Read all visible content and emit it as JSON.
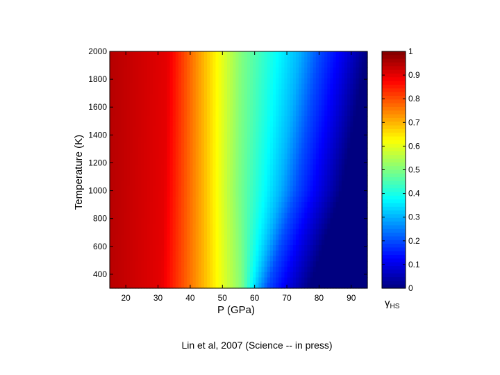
{
  "chart_data": {
    "type": "heatmap",
    "title": "",
    "xlabel": "P (GPa)",
    "ylabel": "Temperature (K)",
    "xlim": [
      15,
      95
    ],
    "ylim": [
      300,
      2000
    ],
    "x_ticks": [
      20,
      30,
      40,
      50,
      60,
      70,
      80,
      90
    ],
    "y_ticks": [
      400,
      600,
      800,
      1000,
      1200,
      1400,
      1600,
      1800,
      2000
    ],
    "colorbar": {
      "label_main": "γ",
      "label_sub": "HS",
      "range": [
        0,
        1
      ],
      "ticks": [
        "0",
        "0.1",
        "0.2",
        "0.3",
        "0.4",
        "0.5",
        "0.6",
        "0.7",
        "0.8",
        "0.9",
        "1"
      ],
      "colormap": "jet"
    },
    "contours": [
      {
        "level": 0.9,
        "P_at_T": [
          [
            300,
            31
          ],
          [
            1000,
            32
          ],
          [
            2000,
            33
          ]
        ]
      },
      {
        "level": 0.7,
        "P_at_T": [
          [
            300,
            44
          ],
          [
            1000,
            44
          ],
          [
            2000,
            44
          ]
        ]
      },
      {
        "level": 0.5,
        "P_at_T": [
          [
            300,
            56
          ],
          [
            1000,
            55
          ],
          [
            2000,
            56
          ]
        ]
      },
      {
        "level": 0.3,
        "P_at_T": [
          [
            300,
            61
          ],
          [
            1000,
            68
          ],
          [
            2000,
            74
          ]
        ]
      },
      {
        "level": 0.2,
        "P_at_T": [
          [
            300,
            64
          ],
          [
            1000,
            73
          ],
          [
            2000,
            80
          ]
        ]
      },
      {
        "level": 0.1,
        "P_at_T": [
          [
            300,
            70
          ],
          [
            1000,
            80
          ],
          [
            2000,
            88
          ]
        ]
      }
    ]
  },
  "caption": "Lin et al, 2007 (Science -- in press)"
}
